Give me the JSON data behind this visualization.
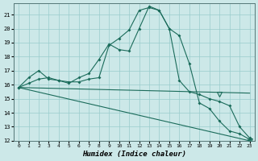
{
  "xlabel": "Humidex (Indice chaleur)",
  "bg_color": "#cce8e8",
  "grid_color": "#99cccc",
  "line_color": "#1a6b5a",
  "xlim": [
    -0.5,
    23.5
  ],
  "ylim": [
    12,
    21.8
  ],
  "yticks": [
    12,
    13,
    14,
    15,
    16,
    17,
    18,
    19,
    20,
    21
  ],
  "xticks": [
    0,
    1,
    2,
    3,
    4,
    5,
    6,
    7,
    8,
    9,
    10,
    11,
    12,
    13,
    14,
    15,
    16,
    17,
    18,
    19,
    20,
    21,
    22,
    23
  ],
  "line1_x": [
    0,
    1,
    2,
    3,
    4,
    5,
    6,
    7,
    8,
    9,
    10,
    11,
    12,
    13,
    14,
    15,
    16,
    17,
    18,
    19,
    20,
    21,
    22,
    23
  ],
  "line1_y": [
    15.8,
    16.1,
    16.4,
    16.5,
    16.3,
    16.2,
    16.2,
    16.4,
    16.5,
    18.8,
    19.3,
    19.9,
    21.3,
    21.5,
    21.3,
    20.0,
    19.5,
    17.5,
    14.7,
    14.3,
    13.4,
    12.7,
    12.5,
    12.1
  ],
  "line2_x": [
    0,
    1,
    2,
    3,
    4,
    5,
    6,
    7,
    8,
    9,
    10,
    11,
    12,
    13,
    14,
    15,
    16,
    17,
    18,
    19,
    20,
    21,
    22,
    23
  ],
  "line2_y": [
    15.8,
    16.5,
    17.0,
    16.4,
    16.3,
    16.1,
    16.5,
    16.8,
    17.8,
    18.9,
    18.5,
    18.4,
    20.0,
    21.6,
    21.3,
    20.0,
    16.3,
    15.5,
    15.3,
    15.0,
    14.8,
    14.5,
    13.0,
    12.2
  ],
  "line3_x": [
    0,
    23
  ],
  "line3_y": [
    15.8,
    15.4
  ],
  "line4_x": [
    0,
    23
  ],
  "line4_y": [
    15.8,
    12.0
  ],
  "tri1_x": 20,
  "tri1_y": 15.35,
  "tri2_x": 23,
  "tri2_y": 12.0
}
